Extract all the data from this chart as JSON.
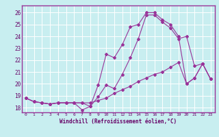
{
  "xlabel": "Windchill (Refroidissement éolien,°C)",
  "background_color": "#c8eef0",
  "line_color": "#993399",
  "xlim": [
    -0.5,
    23.5
  ],
  "ylim": [
    17.6,
    26.6
  ],
  "xticks": [
    0,
    1,
    2,
    3,
    4,
    5,
    6,
    7,
    8,
    9,
    10,
    11,
    12,
    13,
    14,
    15,
    16,
    17,
    18,
    19,
    20,
    21,
    22,
    23
  ],
  "yticks": [
    18,
    19,
    20,
    21,
    22,
    23,
    24,
    25,
    26
  ],
  "line1_x": [
    0,
    1,
    2,
    3,
    4,
    5,
    6,
    7,
    8,
    9,
    10,
    11,
    12,
    13,
    14,
    15,
    16,
    17,
    18,
    19,
    20,
    21,
    22,
    23
  ],
  "line1_y": [
    18.8,
    18.5,
    18.4,
    18.3,
    18.4,
    18.4,
    18.4,
    17.8,
    18.1,
    19.9,
    22.5,
    22.2,
    23.3,
    24.8,
    25.0,
    26.0,
    26.0,
    25.4,
    25.0,
    24.0,
    20.0,
    20.5,
    21.7,
    20.4
  ],
  "line2_x": [
    0,
    1,
    2,
    3,
    4,
    5,
    6,
    7,
    8,
    9,
    10,
    11,
    12,
    13,
    14,
    15,
    16,
    17,
    18,
    19,
    20,
    21,
    22,
    23
  ],
  "line2_y": [
    18.8,
    18.5,
    18.4,
    18.3,
    18.4,
    18.4,
    18.4,
    18.4,
    18.4,
    18.6,
    18.8,
    19.2,
    19.5,
    19.8,
    20.2,
    20.5,
    20.8,
    21.0,
    21.4,
    21.8,
    20.0,
    20.5,
    21.7,
    20.4
  ],
  "line3_x": [
    0,
    1,
    2,
    3,
    4,
    5,
    6,
    7,
    8,
    9,
    10,
    11,
    12,
    13,
    14,
    15,
    16,
    17,
    18,
    19,
    20,
    21,
    22,
    23
  ],
  "line3_y": [
    18.8,
    18.5,
    18.4,
    18.3,
    18.4,
    18.4,
    18.4,
    18.4,
    18.1,
    18.9,
    19.9,
    19.6,
    20.8,
    22.2,
    23.8,
    25.8,
    25.8,
    25.2,
    24.7,
    23.8,
    24.0,
    21.5,
    21.7,
    20.4
  ]
}
